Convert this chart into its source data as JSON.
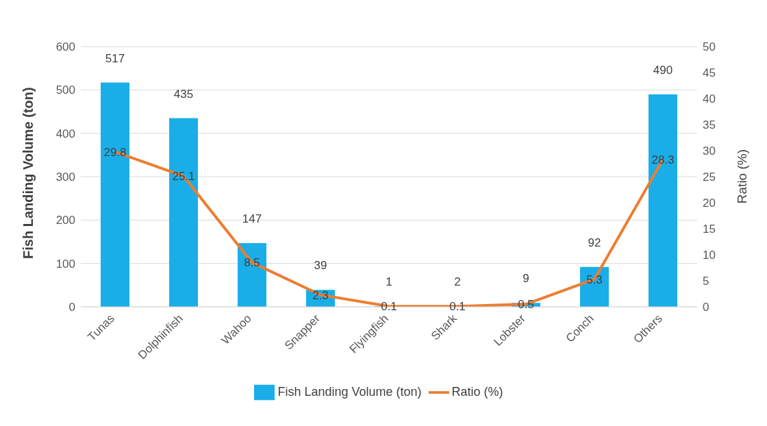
{
  "chart_data": {
    "type": "bar",
    "categories": [
      "Tunas",
      "Dolphinfish",
      "Wahoo",
      "Snapper",
      "Flyingfish",
      "Shark",
      "Lobster",
      "Conch",
      "Others"
    ],
    "series": [
      {
        "name": "Fish Landing Volume (ton)",
        "color": "#1aaee8",
        "values": [
          517,
          435,
          147,
          39,
          1,
          2,
          9,
          92,
          490
        ]
      },
      {
        "name": "Ratio (%)",
        "type": "line",
        "axis": "y2",
        "color": "#ed7d31",
        "values": [
          29.8,
          25.1,
          8.5,
          2.3,
          0.1,
          0.1,
          0.5,
          5.3,
          28.3
        ]
      }
    ],
    "ylabel": "Fish Landing Volume (ton)",
    "y2label": "Ratio (%)",
    "ylim": [
      0,
      600
    ],
    "yticks": [
      0,
      100,
      200,
      300,
      400,
      500,
      600
    ],
    "y2lim": [
      0,
      50
    ],
    "y2ticks": [
      0,
      5,
      10,
      15,
      20,
      25,
      30,
      35,
      40,
      45,
      50
    ],
    "grid": "y",
    "legend": "bottom",
    "marker": "none",
    "line_style": "solid",
    "data_labels": true
  }
}
